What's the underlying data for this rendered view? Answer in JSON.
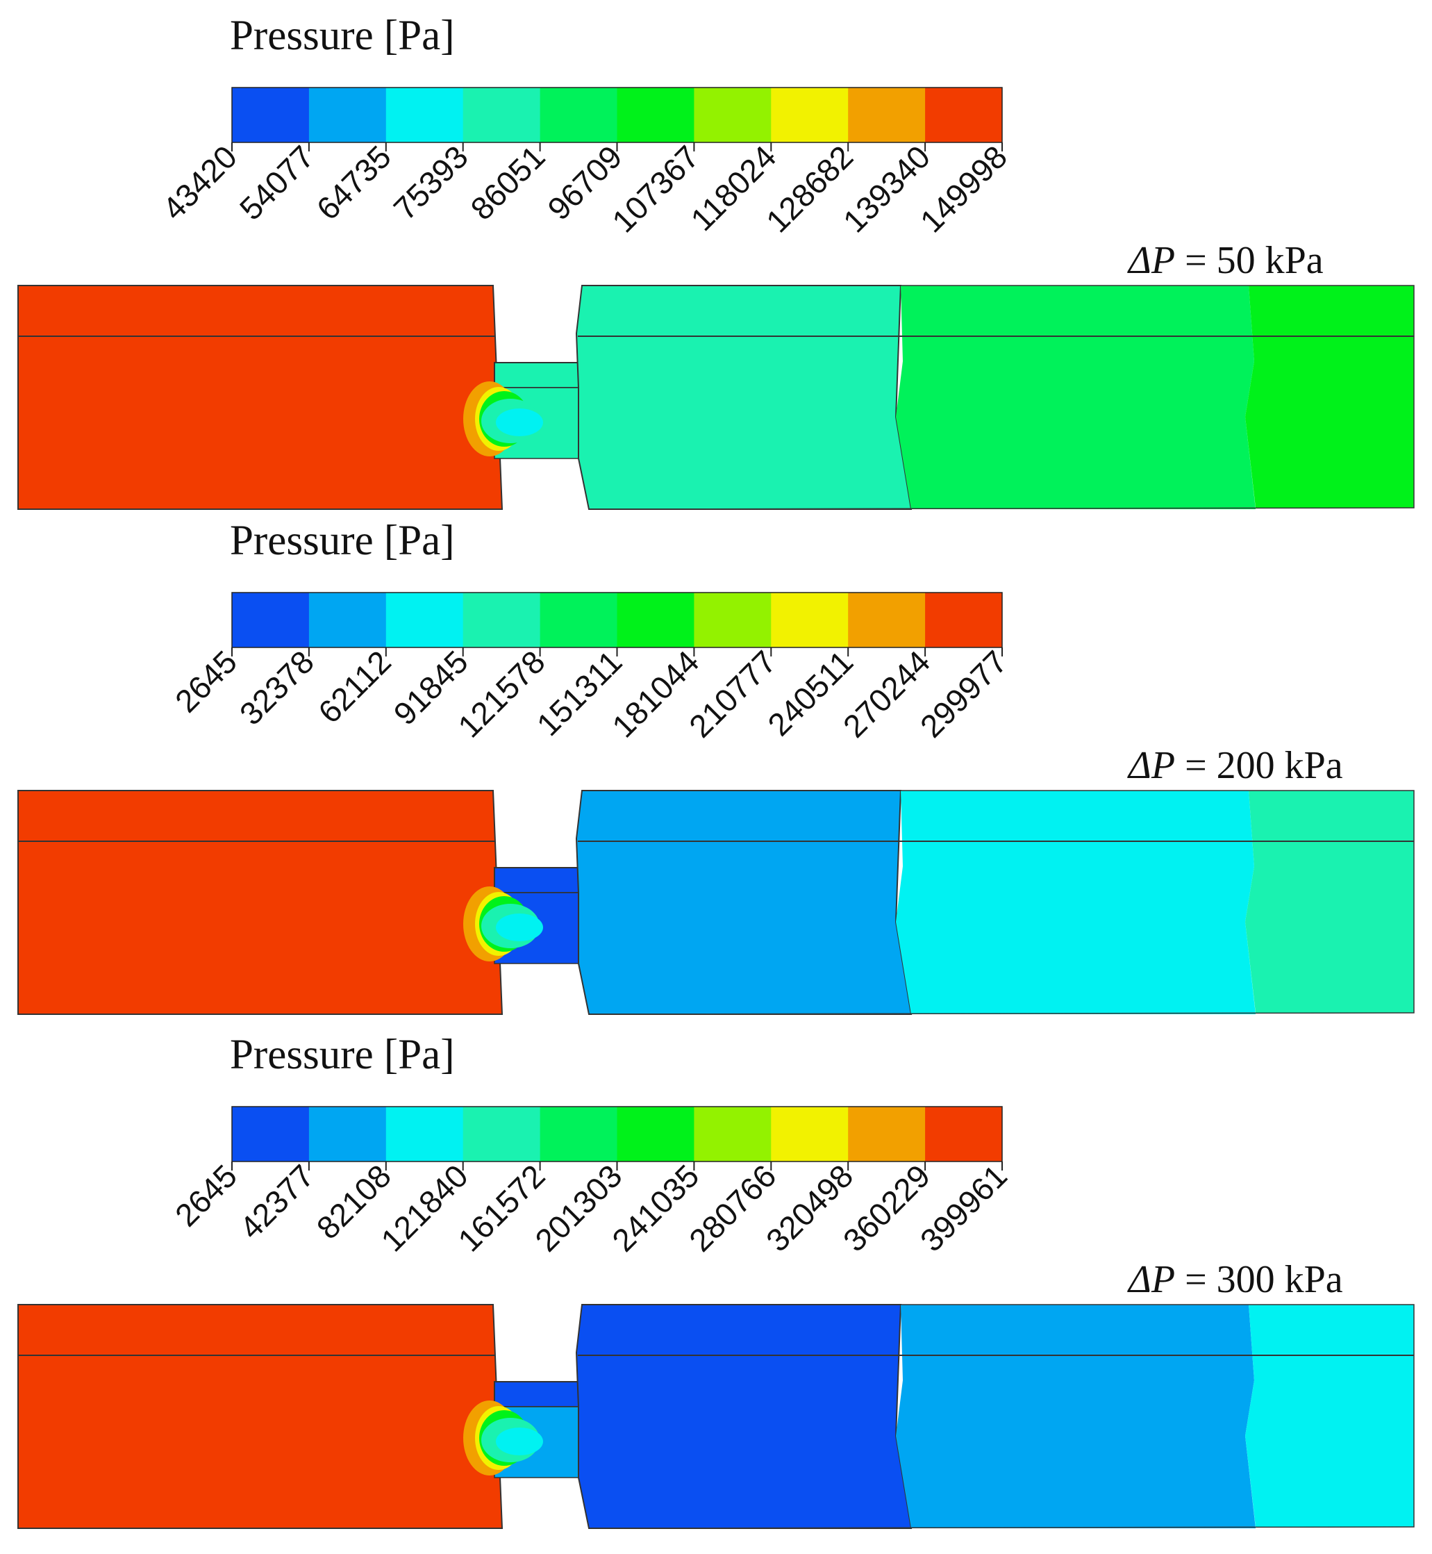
{
  "colormap": [
    "#0a4ff2",
    "#00a6f2",
    "#00f2f2",
    "#1af2b0",
    "#00f25a",
    "#00f21a",
    "#93f200",
    "#f2f200",
    "#f2a000",
    "#f23c00"
  ],
  "panels": [
    {
      "legend_title": "Pressure [Pa]",
      "tick_labels": [
        "43420",
        "54077",
        "64735",
        "75393",
        "86051",
        "96709",
        "107367",
        "118024",
        "128682",
        "139340",
        "149998"
      ],
      "delta_symbol": "ΔP",
      "delta_value": " = 50 kPa",
      "field_colors": {
        "inlet": "#f23c00",
        "orifice_upper": "#1af2b0",
        "orifice_lower": "#1af2b0",
        "outlet_zone_1": "#1af2b0",
        "outlet_zone_2": "#00f25a",
        "outlet_zone_3": "#00f21a"
      }
    },
    {
      "legend_title": "Pressure [Pa]",
      "tick_labels": [
        "2645",
        "32378",
        "62112",
        "91845",
        "121578",
        "151311",
        "181044",
        "210777",
        "240511",
        "270244",
        "299977"
      ],
      "delta_symbol": "ΔP",
      "delta_value": " = 200 kPa",
      "field_colors": {
        "inlet": "#f23c00",
        "orifice_upper": "#0a4ff2",
        "orifice_lower": "#0a4ff2",
        "outlet_zone_1": "#00a6f2",
        "outlet_zone_2": "#00f2f2",
        "outlet_zone_3": "#1af2b0"
      }
    },
    {
      "legend_title": "Pressure [Pa]",
      "tick_labels": [
        "2645",
        "42377",
        "82108",
        "121840",
        "161572",
        "201303",
        "241035",
        "280766",
        "320498",
        "360229",
        "399961"
      ],
      "delta_symbol": "ΔP",
      "delta_value": " = 300 kPa",
      "field_colors": {
        "inlet": "#f23c00",
        "orifice_upper": "#0a4ff2",
        "orifice_lower": "#00a6f2",
        "outlet_zone_1": "#0a4ff2",
        "outlet_zone_2": "#00a6f2",
        "outlet_zone_3": "#00f2f2"
      }
    }
  ]
}
